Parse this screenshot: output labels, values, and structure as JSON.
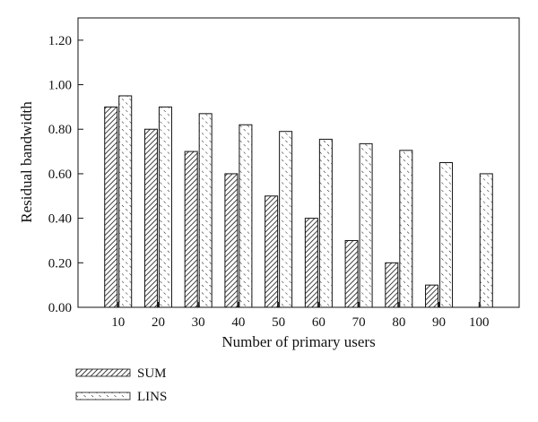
{
  "chart_data": {
    "type": "bar",
    "categories": [
      "10",
      "20",
      "30",
      "40",
      "50",
      "60",
      "70",
      "80",
      "90",
      "100"
    ],
    "series": [
      {
        "name": "SUM",
        "values": [
          0.9,
          0.8,
          0.7,
          0.6,
          0.5,
          0.4,
          0.3,
          0.2,
          0.1,
          0.0
        ],
        "pattern": "diagonal-dense"
      },
      {
        "name": "LINS",
        "values": [
          0.95,
          0.9,
          0.87,
          0.82,
          0.79,
          0.755,
          0.735,
          0.705,
          0.65,
          0.6
        ],
        "pattern": "diagonal-dashed"
      }
    ],
    "xlabel": "Number of primary users",
    "ylabel": "Residual bandwidth",
    "ylim": [
      0,
      1.3
    ],
    "yticks": [
      "0.00",
      "0.20",
      "0.40",
      "0.60",
      "0.80",
      "1.00",
      "1.20"
    ],
    "ytick_values": [
      0,
      0.2,
      0.4,
      0.6,
      0.8,
      1.0,
      1.2
    ],
    "grid": false,
    "legend_position": "bottom-left"
  }
}
